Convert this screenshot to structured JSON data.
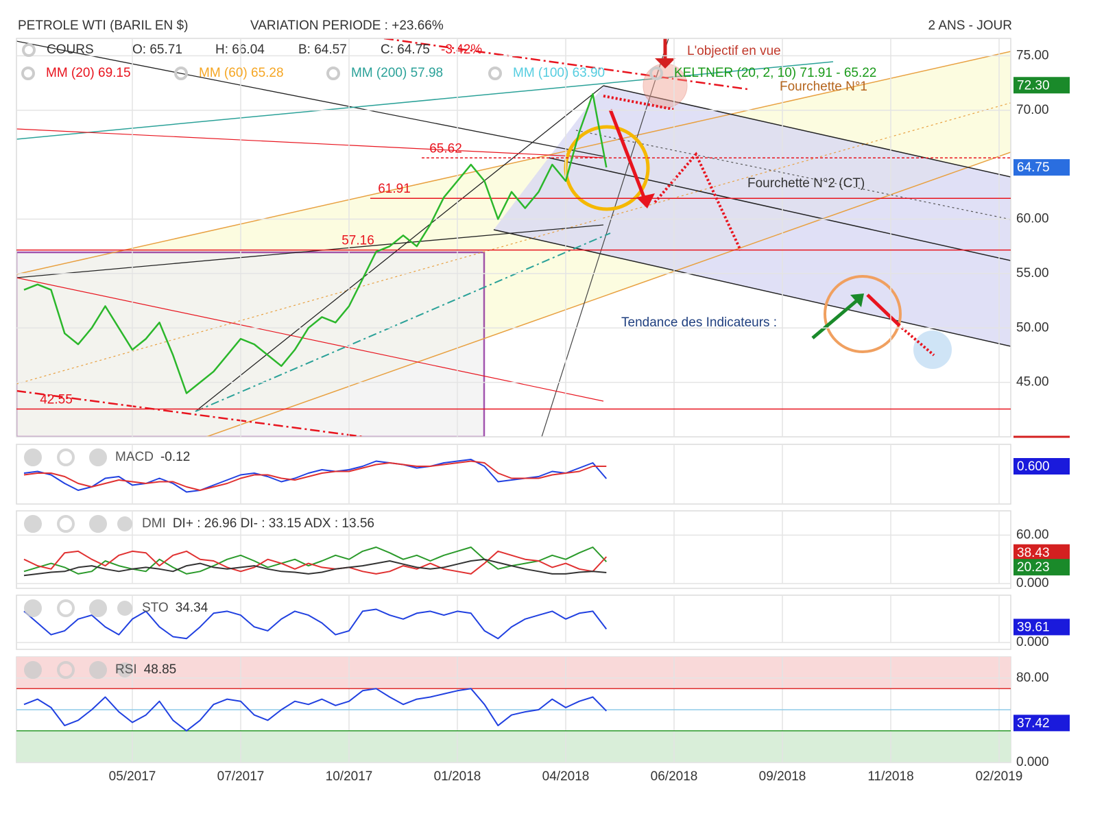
{
  "header": {
    "title": "PETROLE WTI (BARIL EN $)",
    "variation": "VARIATION PERIODE : +23.66%",
    "period": "2 ANS - JOUR"
  },
  "chart_data": [
    {
      "type": "line",
      "categories": [
        null,
        null,
        null,
        null,
        null,
        null,
        null,
        null,
        "05/2017",
        null,
        null,
        null,
        null,
        null,
        null,
        null,
        "07/2017",
        null,
        null,
        null,
        null,
        null,
        null,
        null,
        "10/2017",
        null,
        null,
        null,
        null,
        null,
        null,
        null,
        "01/2018",
        null,
        null,
        null,
        null,
        null,
        null,
        null,
        "04/2018",
        null,
        null,
        null,
        null,
        null,
        null,
        null,
        "06/2018",
        null,
        null,
        null,
        null,
        null,
        null,
        null,
        "09/2018",
        null,
        null,
        null,
        null,
        null,
        null,
        null,
        "11/2018",
        null,
        null,
        null,
        null,
        null,
        null,
        null,
        "02/2019"
      ],
      "series": [
        {
          "name": "COURS",
          "color": "#2bb72b",
          "values": [
            53.5,
            54,
            53.5,
            49.5,
            48.5,
            50,
            52,
            50,
            48,
            49,
            50.5,
            47.5,
            44,
            45,
            46,
            47.5,
            49,
            48.5,
            47.5,
            46.5,
            48,
            50,
            51,
            50.5,
            52,
            54.5,
            57,
            57.5,
            58.5,
            57.5,
            59.5,
            62,
            63.5,
            65,
            63.5,
            60,
            62.5,
            61,
            62.5,
            65,
            63.5,
            68,
            71.5,
            64.75,
            null,
            null,
            null,
            null,
            null,
            null,
            null,
            null,
            null,
            null,
            null,
            null,
            null,
            null,
            null,
            null,
            null,
            null,
            null,
            null,
            null,
            null,
            null,
            null,
            null,
            null,
            null,
            null,
            null
          ]
        }
      ],
      "ohlc": [
        "O: 65.71",
        "H: 66.04",
        "B: 64.57",
        "C: 64.75"
      ],
      "change": "-3.42%",
      "indicators": [
        {
          "label": "MM (20) 69.15",
          "color": "#e8141e"
        },
        {
          "label": "MM (60) 65.28",
          "color": "#f5a623"
        },
        {
          "label": "MM (200) 57.98",
          "color": "#2aa198"
        },
        {
          "label": "MM (100) 63.90",
          "color": "#55cde0"
        },
        {
          "label": "KELTNER (20, 2, 10) 71.91 - 65.22",
          "color": "#1a9a1a"
        }
      ],
      "levels": [
        65.62,
        61.91,
        57.16,
        42.55
      ],
      "level_color": "#e8141e",
      "annotations": [
        "L'objectif en vue",
        "Fourchette N°1",
        "Fourchette N°2 (CT)",
        "Tendance des Indicateurs :"
      ],
      "ylim": [
        40,
        76.6
      ],
      "yticks": [
        {
          "value": 75,
          "label": "75.00"
        },
        {
          "value": 70,
          "label": "70.00"
        },
        {
          "value": 60,
          "label": "60.00"
        },
        {
          "value": 55,
          "label": "55.00"
        },
        {
          "value": 50,
          "label": "50.00"
        },
        {
          "value": 45,
          "label": "45.00"
        }
      ],
      "badges": [
        {
          "value": 72.3,
          "label": "72.30",
          "color": "#1a8a2a"
        },
        {
          "value": 64.75,
          "label": "64.75",
          "color": "#2a6ee0"
        }
      ],
      "grid": true
    },
    {
      "type": "line",
      "label": "MACD",
      "value": "-0.12",
      "series": [
        {
          "color": "#2040e0",
          "values": [
            0.2,
            0.3,
            0.1,
            -0.4,
            -0.8,
            -0.6,
            -0.1,
            0.0,
            -0.5,
            -0.4,
            -0.1,
            -0.4,
            -0.9,
            -0.8,
            -0.5,
            -0.2,
            0.1,
            0.2,
            0.0,
            -0.3,
            -0.1,
            0.2,
            0.4,
            0.3,
            0.4,
            0.6,
            0.9,
            0.8,
            0.7,
            0.5,
            0.6,
            0.8,
            0.9,
            1.0,
            0.6,
            -0.3,
            -0.2,
            -0.1,
            0.0,
            0.3,
            0.2,
            0.5,
            0.8,
            -0.12,
            null,
            null,
            null,
            null,
            null,
            null,
            null,
            null,
            null,
            null,
            null,
            null,
            null,
            null,
            null,
            null,
            null,
            null,
            null,
            null,
            null,
            null,
            null,
            null,
            null,
            null,
            null,
            null,
            null
          ]
        },
        {
          "color": "#e03030",
          "values": [
            0.1,
            0.2,
            0.2,
            0.0,
            -0.4,
            -0.6,
            -0.4,
            -0.2,
            -0.3,
            -0.4,
            -0.3,
            -0.3,
            -0.6,
            -0.8,
            -0.6,
            -0.4,
            -0.1,
            0.1,
            0.1,
            -0.1,
            -0.2,
            0.0,
            0.2,
            0.3,
            0.3,
            0.5,
            0.7,
            0.8,
            0.7,
            0.6,
            0.6,
            0.7,
            0.8,
            0.9,
            0.8,
            0.2,
            -0.1,
            -0.1,
            -0.1,
            0.1,
            0.2,
            0.3,
            0.6,
            0.6,
            null,
            null,
            null,
            null,
            null,
            null,
            null,
            null,
            null,
            null,
            null,
            null,
            null,
            null,
            null,
            null,
            null,
            null,
            null,
            null,
            null,
            null,
            null,
            null,
            null,
            null,
            null,
            null,
            null
          ]
        }
      ],
      "ylim": [
        -1.6,
        1.6
      ],
      "yticks": [],
      "badges": [
        {
          "value": 0.6,
          "label": "0.600",
          "color": "#1a1adc"
        }
      ],
      "grid": true
    },
    {
      "type": "line",
      "label": "DMI",
      "value": "DI+ : 26.96 DI- : 33.15 ADX : 13.56",
      "series": [
        {
          "color": "#2a9a2a",
          "values": [
            15,
            20,
            25,
            20,
            12,
            15,
            28,
            22,
            18,
            15,
            30,
            20,
            12,
            15,
            22,
            30,
            35,
            28,
            20,
            25,
            30,
            22,
            28,
            35,
            30,
            40,
            45,
            38,
            30,
            35,
            28,
            35,
            40,
            45,
            30,
            18,
            22,
            25,
            28,
            35,
            30,
            38,
            45,
            26.96,
            null,
            null,
            null,
            null,
            null,
            null,
            null,
            null,
            null,
            null,
            null,
            null,
            null,
            null,
            null,
            null,
            null,
            null,
            null,
            null,
            null,
            null,
            null,
            null,
            null,
            null,
            null,
            null,
            null
          ]
        },
        {
          "color": "#e03030",
          "values": [
            30,
            22,
            18,
            38,
            40,
            30,
            22,
            35,
            40,
            38,
            22,
            35,
            40,
            30,
            28,
            20,
            15,
            20,
            30,
            25,
            18,
            25,
            20,
            18,
            20,
            15,
            12,
            15,
            22,
            18,
            25,
            18,
            15,
            12,
            25,
            40,
            35,
            30,
            28,
            20,
            25,
            18,
            15,
            33.15,
            null,
            null,
            null,
            null,
            null,
            null,
            null,
            null,
            null,
            null,
            null,
            null,
            null,
            null,
            null,
            null,
            null,
            null,
            null,
            null,
            null,
            null,
            null,
            null,
            null,
            null,
            null,
            null,
            null
          ]
        },
        {
          "color": "#333333",
          "values": [
            10,
            12,
            14,
            15,
            20,
            22,
            18,
            15,
            18,
            20,
            18,
            15,
            22,
            25,
            20,
            18,
            20,
            22,
            18,
            15,
            14,
            12,
            14,
            18,
            20,
            22,
            25,
            28,
            24,
            20,
            18,
            20,
            24,
            28,
            30,
            26,
            22,
            18,
            15,
            12,
            12,
            14,
            15,
            13.56,
            null,
            null,
            null,
            null,
            null,
            null,
            null,
            null,
            null,
            null,
            null,
            null,
            null,
            null,
            null,
            null,
            null,
            null,
            null,
            null,
            null,
            null,
            null,
            null,
            null,
            null,
            null,
            null,
            null
          ]
        }
      ],
      "ylim": [
        0,
        90
      ],
      "yticks": [
        {
          "value": 60,
          "label": "60.00"
        },
        {
          "value": 0,
          "label": "0.000"
        }
      ],
      "badges": [
        {
          "value": 38.43,
          "label": "38.43",
          "color": "#d42020"
        },
        {
          "value": 20.23,
          "label": "20.23",
          "color": "#1a8a2a"
        }
      ],
      "grid": true
    },
    {
      "type": "line",
      "label": "STO",
      "value": "34.34",
      "series": [
        {
          "color": "#2040e0",
          "values": [
            80,
            50,
            20,
            30,
            60,
            70,
            40,
            20,
            60,
            80,
            40,
            15,
            10,
            40,
            75,
            80,
            70,
            40,
            30,
            60,
            80,
            70,
            50,
            20,
            30,
            80,
            85,
            70,
            60,
            75,
            80,
            70,
            80,
            75,
            30,
            10,
            40,
            60,
            70,
            80,
            60,
            75,
            80,
            34.34,
            null,
            null,
            null,
            null,
            null,
            null,
            null,
            null,
            null,
            null,
            null,
            null,
            null,
            null,
            null,
            null,
            null,
            null,
            null,
            null,
            null,
            null,
            null,
            null,
            null,
            null,
            null,
            null,
            null
          ]
        }
      ],
      "ylim": [
        0,
        100
      ],
      "yticks": [
        {
          "value": 0,
          "label": "0.000"
        }
      ],
      "badges": [
        {
          "value": 39.61,
          "label": "39.61",
          "color": "#1a1adc"
        }
      ],
      "grid": true
    },
    {
      "type": "line",
      "label": "RSI",
      "value": "48.85",
      "series": [
        {
          "color": "#2040e0",
          "values": [
            55,
            60,
            52,
            35,
            40,
            50,
            62,
            48,
            38,
            45,
            58,
            40,
            30,
            40,
            55,
            60,
            58,
            45,
            40,
            50,
            58,
            55,
            60,
            54,
            58,
            68,
            70,
            62,
            55,
            60,
            62,
            65,
            68,
            70,
            55,
            35,
            45,
            48,
            50,
            60,
            52,
            58,
            62,
            48.85,
            null,
            null,
            null,
            null,
            null,
            null,
            null,
            null,
            null,
            null,
            null,
            null,
            null,
            null,
            null,
            null,
            null,
            null,
            null,
            null,
            null,
            null,
            null,
            null,
            null,
            null,
            null,
            null,
            null
          ]
        }
      ],
      "levels": [
        70,
        50,
        30
      ],
      "level_colors": [
        "#e03030",
        "#8ecbe8",
        "#2a9a2a"
      ],
      "zone_colors": [
        "#f9d9d9",
        "#d9eed9"
      ],
      "ylim": [
        0,
        100
      ],
      "yticks": [
        {
          "value": 80,
          "label": "80.00"
        },
        {
          "value": 0,
          "label": "0.000"
        }
      ],
      "badges": [
        {
          "value": 37.42,
          "label": "37.42",
          "color": "#1a1adc"
        }
      ],
      "grid": true
    }
  ]
}
